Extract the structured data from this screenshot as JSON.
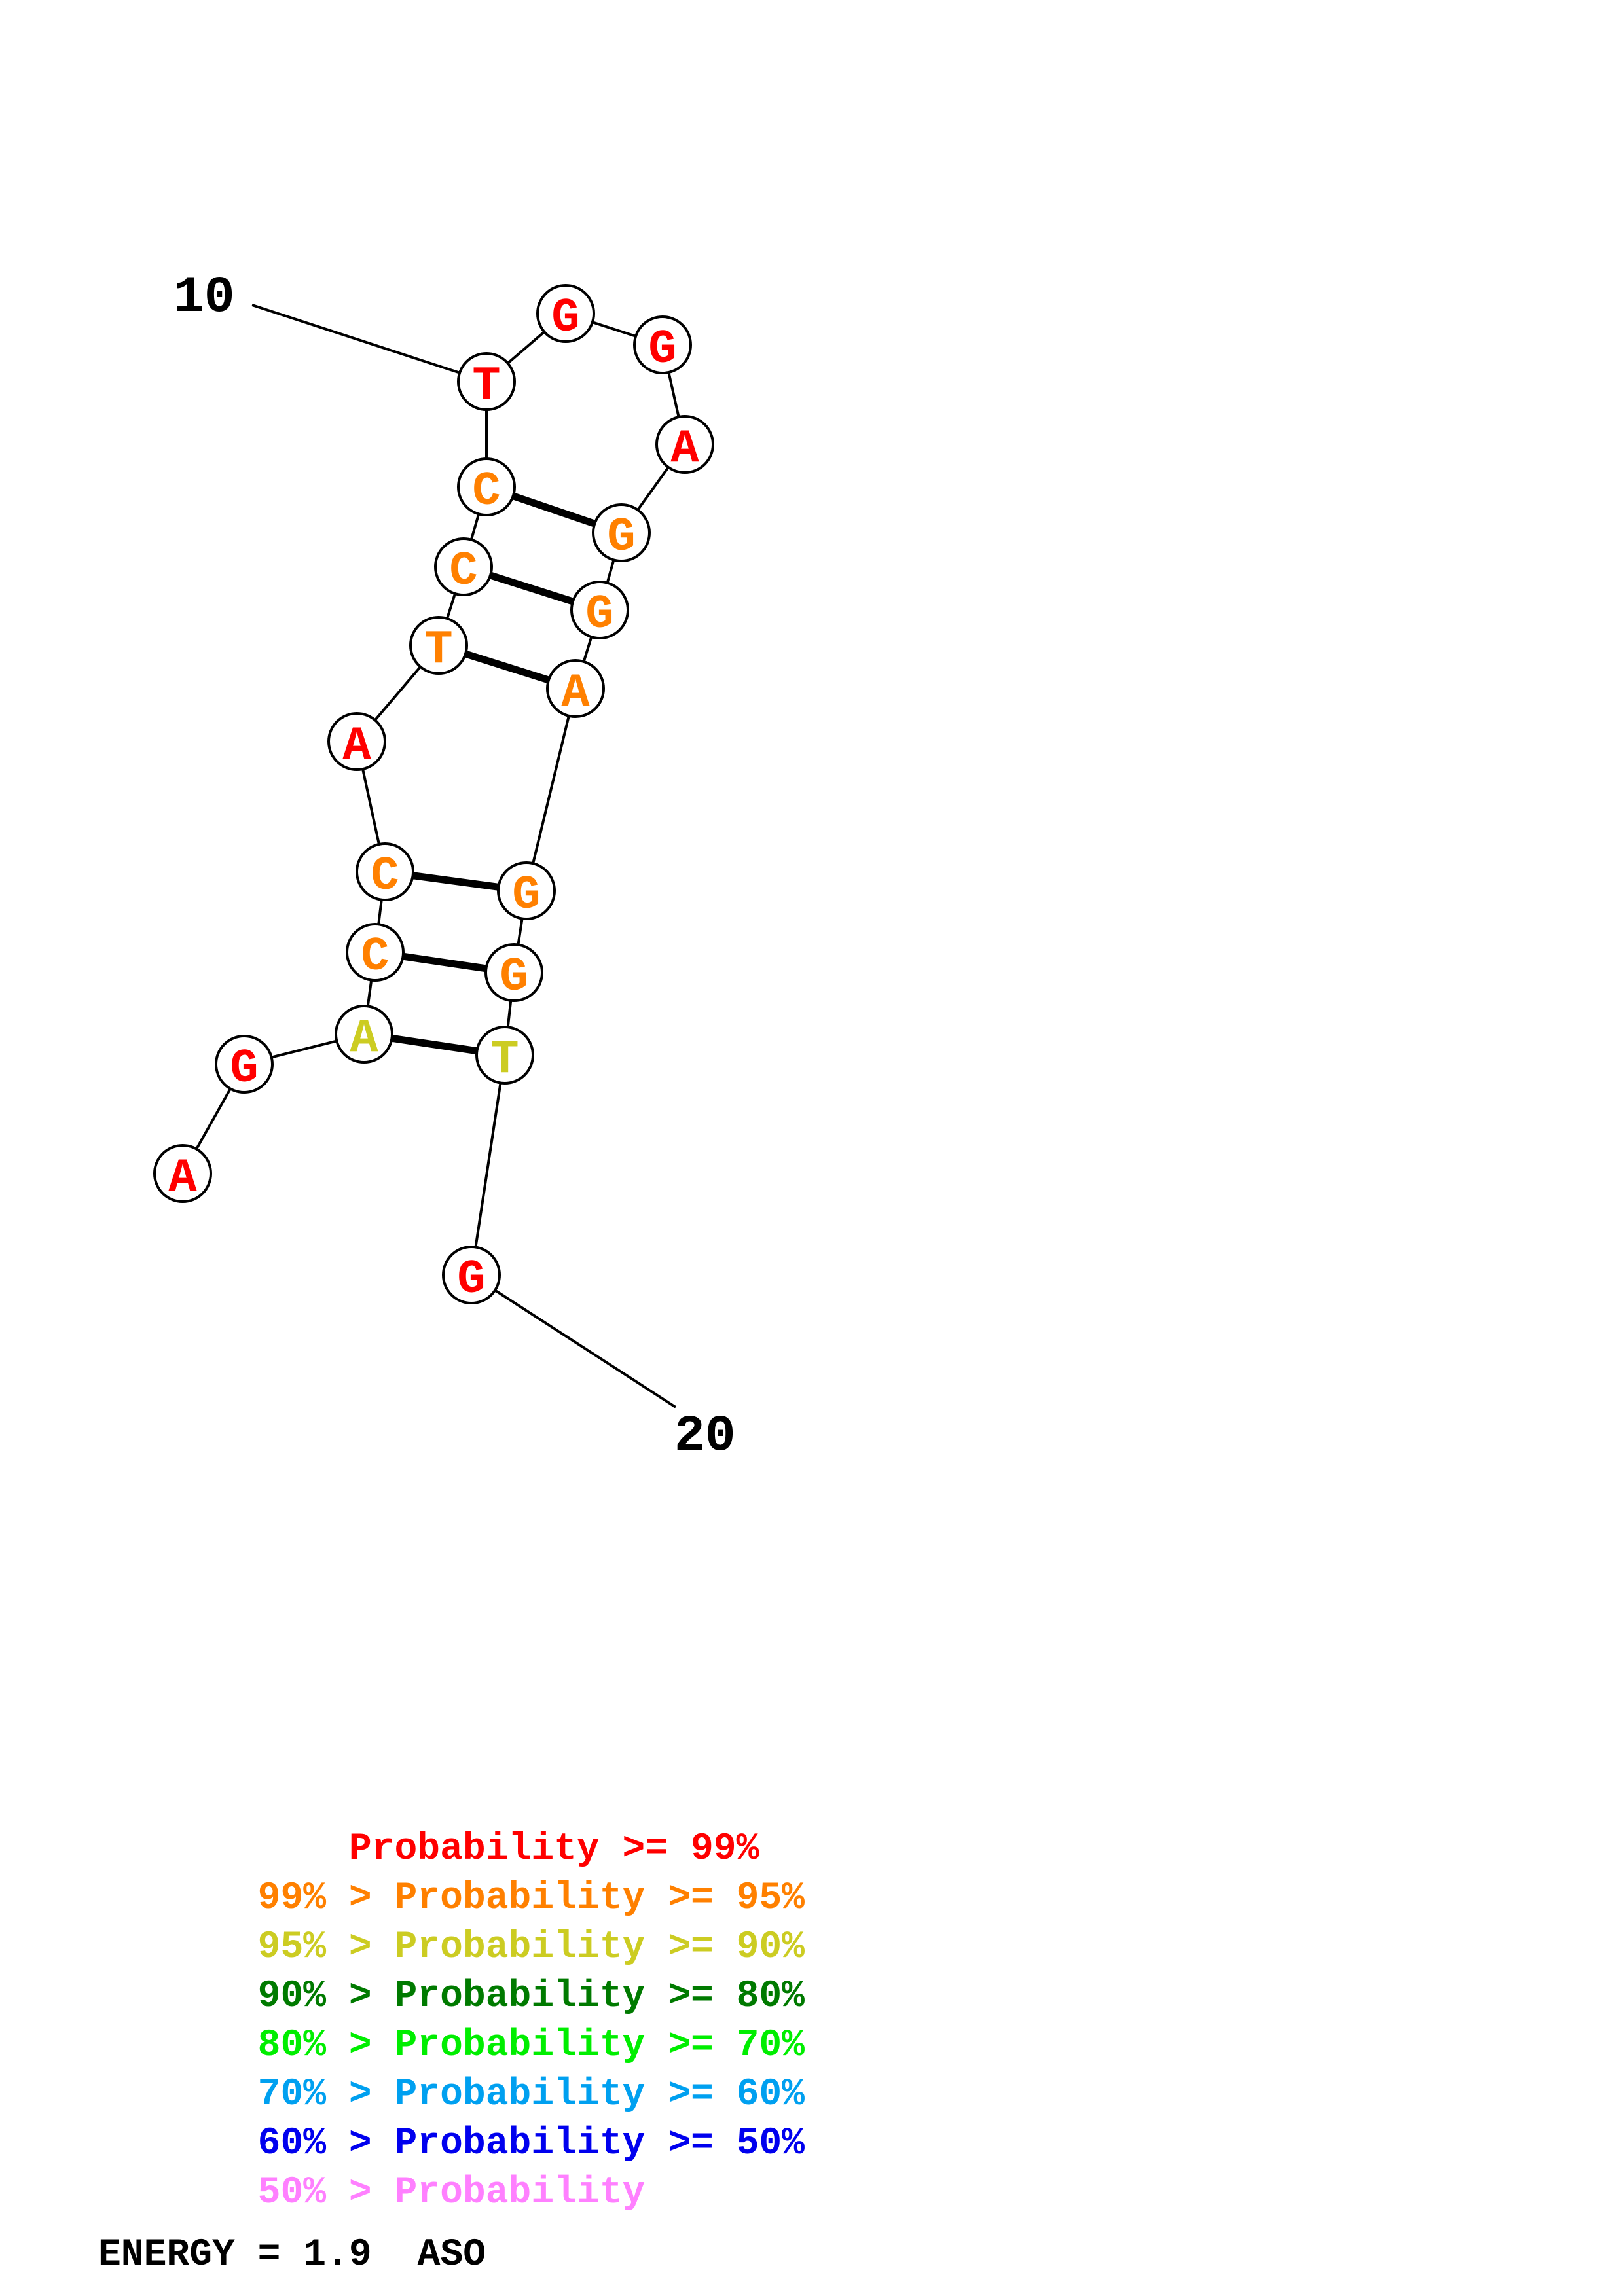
{
  "colors": {
    "p99": "#ff0000",
    "p95": "#ff8000",
    "p90": "#cccc22",
    "p80": "#007a00",
    "p70": "#00ee00",
    "p60": "#00a0f0",
    "p50": "#0000ee",
    "plow": "#ff80ff"
  },
  "sequence": [
    {
      "base": "A",
      "color": "p99"
    },
    {
      "base": "G",
      "color": "p99"
    },
    {
      "base": "A",
      "color": "p90"
    },
    {
      "base": "C",
      "color": "p95"
    },
    {
      "base": "C",
      "color": "p95"
    },
    {
      "base": "A",
      "color": "p99"
    },
    {
      "base": "T",
      "color": "p95"
    },
    {
      "base": "C",
      "color": "p95"
    },
    {
      "base": "C",
      "color": "p95"
    },
    {
      "base": "T",
      "color": "p99"
    },
    {
      "base": "G",
      "color": "p99"
    },
    {
      "base": "G",
      "color": "p99"
    },
    {
      "base": "A",
      "color": "p99"
    },
    {
      "base": "G",
      "color": "p95"
    },
    {
      "base": "G",
      "color": "p95"
    },
    {
      "base": "A",
      "color": "p95"
    },
    {
      "base": "G",
      "color": "p95"
    },
    {
      "base": "G",
      "color": "p95"
    },
    {
      "base": "T",
      "color": "p90"
    },
    {
      "base": "G",
      "color": "p99"
    }
  ],
  "pairs": [
    [
      3,
      19
    ],
    [
      4,
      18
    ],
    [
      5,
      17
    ],
    [
      7,
      16
    ],
    [
      8,
      15
    ],
    [
      9,
      14
    ]
  ],
  "index_labels": [
    {
      "text": "10",
      "nt": 10
    },
    {
      "text": "20",
      "nt": 20
    }
  ],
  "legend": [
    {
      "prefix": "    ",
      "label": "Probability >= 99%",
      "color": "p99"
    },
    {
      "prefix": "99% > ",
      "label": "Probability >= 95%",
      "color": "p95"
    },
    {
      "prefix": "95% > ",
      "label": "Probability >= 90%",
      "color": "p90"
    },
    {
      "prefix": "90% > ",
      "label": "Probability >= 80%",
      "color": "p80"
    },
    {
      "prefix": "80% > ",
      "label": "Probability >= 70%",
      "color": "p70"
    },
    {
      "prefix": "70% > ",
      "label": "Probability >= 60%",
      "color": "p60"
    },
    {
      "prefix": "60% > ",
      "label": "Probability >= 50%",
      "color": "p50"
    },
    {
      "prefix": "50% > ",
      "label": "Probability",
      "color": "plow"
    }
  ],
  "energy": {
    "label": "ENERGY = 1.9",
    "name": "ASO"
  }
}
